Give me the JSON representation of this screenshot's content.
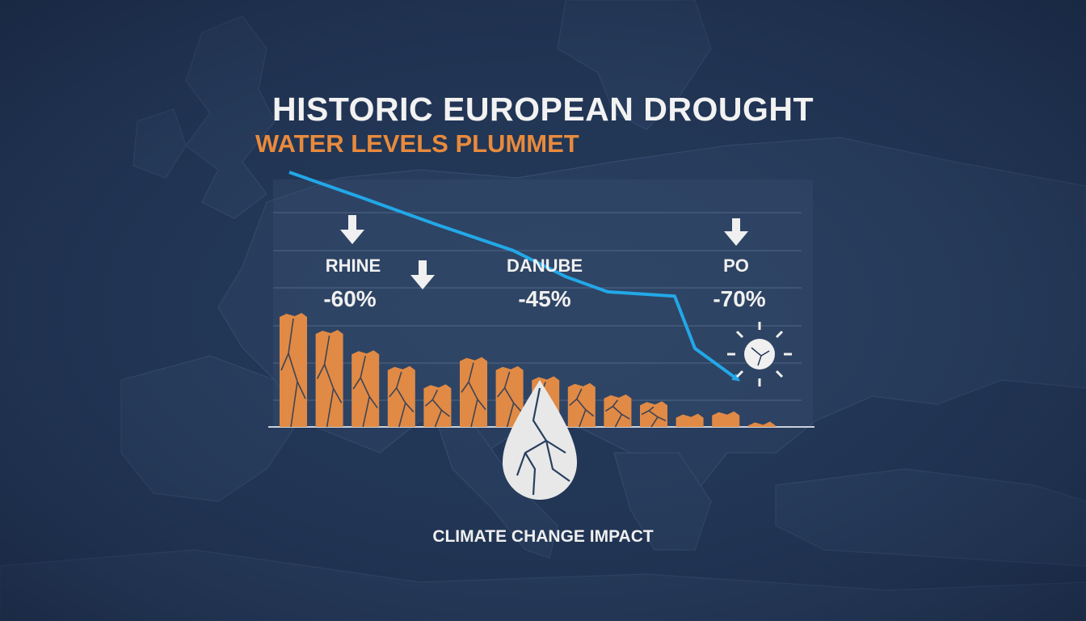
{
  "header": {
    "title": "HISTORIC EUROPEAN DROUGHT",
    "subtitle": "WATER LEVELS PLUMMET"
  },
  "footer": {
    "caption": "CLIMATE CHANGE IMPACT"
  },
  "colors": {
    "background": "#223656",
    "map_land": "#2a3f60",
    "bar": "#e08a45",
    "trend_line": "#22a8e8",
    "text": "#f0f0f0",
    "subtitle": "#e88a3c"
  },
  "icons": [
    "down-arrow-icon",
    "cracked-drop-icon",
    "sun-icon",
    "cracked-earth-texture"
  ],
  "chart_data": {
    "type": "bar",
    "title": "HISTORIC EUROPEAN DROUGHT",
    "subtitle": "WATER LEVELS PLUMMET",
    "values": [
      100,
      85,
      67,
      53,
      37,
      61,
      53,
      44,
      38,
      28,
      22,
      11,
      13,
      4
    ],
    "ylim": [
      0,
      100
    ],
    "grid": true,
    "trend_line": [
      100,
      88,
      76,
      64,
      52,
      45,
      43,
      19,
      5
    ],
    "annotations": [
      {
        "river": "RHINE",
        "change": "-60%"
      },
      {
        "river": "DANUBE",
        "change": "-45%"
      },
      {
        "river": "PO",
        "change": "-70%"
      }
    ]
  }
}
